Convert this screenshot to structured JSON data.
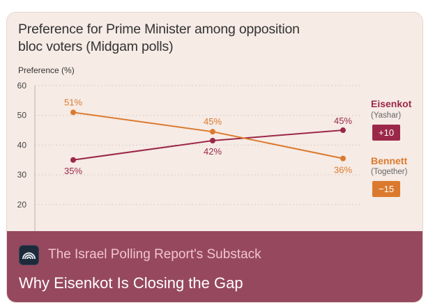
{
  "chart_data": {
    "type": "line",
    "title": "Preference for Prime Minister among opposition bloc voters (Midgam polls)",
    "ylabel": "Preference (%)",
    "xlabel": "",
    "ylim": [
      10,
      60
    ],
    "yticks": [
      10,
      20,
      30,
      40,
      50,
      60
    ],
    "grid": true,
    "x": [
      0,
      1,
      2
    ],
    "series": [
      {
        "name": "Eisenkot",
        "party": "(Yashar)",
        "change": "+10",
        "color": "#9b2848",
        "values": [
          35,
          41.5,
          45
        ],
        "labels": [
          "35%",
          "42%",
          "45%"
        ]
      },
      {
        "name": "Bennett",
        "party": "(Together)",
        "change": "−15",
        "color": "#db7a2e",
        "values": [
          51,
          44.5,
          35.5
        ],
        "labels": [
          "51%",
          "45%",
          "36%"
        ]
      }
    ]
  },
  "footer": {
    "publication": "The Israel Polling Report's Substack",
    "post_title": "Why Eisenkot Is Closing the Gap",
    "icon": "substack-logo-icon",
    "background": "#96485f"
  }
}
